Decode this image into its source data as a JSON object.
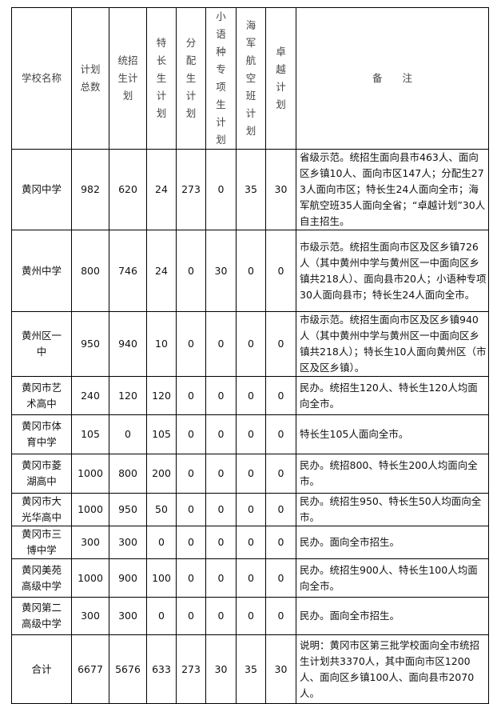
{
  "headers": {
    "school": "学校名称",
    "total": "计划总数",
    "unified": "统招生计划",
    "special": "特长生计划",
    "allocated": "分配生计划",
    "minor_lang": "小语种专项生计划",
    "navy": "海军航空班计划",
    "excellence": "卓越计划",
    "notes": "备　　注"
  },
  "rows": [
    {
      "school": "黄冈中学",
      "total": "982",
      "unified": "620",
      "special": "24",
      "allocated": "273",
      "minor_lang": "0",
      "navy": "35",
      "excellence": "30",
      "notes": "省级示范。统招生面向县市463人、面向区乡镇10人、面向市区147人；分配生273人面向市区；特长生24人面向全市；海军航空班35人面向全省；“卓越计划”30人自主招生。"
    },
    {
      "school": "黄州中学",
      "total": "800",
      "unified": "746",
      "special": "24",
      "allocated": "0",
      "minor_lang": "30",
      "navy": "0",
      "excellence": "0",
      "notes": "市级示范。统招生面向市区及区乡镇726人（其中黄州中学与黄州区一中面向区乡镇共218人）、面向县市20人；小语种专项30人面向县市；特长生24人面向全市。"
    },
    {
      "school": "黄州区一中",
      "total": "950",
      "unified": "940",
      "special": "10",
      "allocated": "0",
      "minor_lang": "0",
      "navy": "0",
      "excellence": "0",
      "notes": "市级示范。统招生面向市区及区乡镇940人（其中黄州中学与黄州区一中面向区乡镇共218人）；特长生10人面向黄州区（市区及区乡镇）。"
    },
    {
      "school": "黄冈市艺术高中",
      "total": "240",
      "unified": "120",
      "special": "120",
      "allocated": "0",
      "minor_lang": "0",
      "navy": "0",
      "excellence": "0",
      "notes": "民办。统招生120人、特长生120人均面向全市。"
    },
    {
      "school": "黄冈市体育中学",
      "total": "105",
      "unified": "0",
      "special": "105",
      "allocated": "0",
      "minor_lang": "0",
      "navy": "0",
      "excellence": "0",
      "notes": "特长生105人面向全市。"
    },
    {
      "school": "黄冈市菱湖高中",
      "total": "1000",
      "unified": "800",
      "special": "200",
      "allocated": "0",
      "minor_lang": "0",
      "navy": "0",
      "excellence": "0",
      "notes": "民办。统招800、特长生200人均面向全市。"
    },
    {
      "school": "黄冈市大光华高中",
      "total": "1000",
      "unified": "950",
      "special": "50",
      "allocated": "0",
      "minor_lang": "0",
      "navy": "0",
      "excellence": "0",
      "notes": "民办。统招生950、特长生50人均面向全市。"
    },
    {
      "school": "黄冈市三博中学",
      "total": "300",
      "unified": "300",
      "special": "0",
      "allocated": "0",
      "minor_lang": "0",
      "navy": "0",
      "excellence": "0",
      "notes": "民办。面向全市招生。"
    },
    {
      "school": "黄冈美苑高级中学",
      "total": "1000",
      "unified": "900",
      "special": "100",
      "allocated": "0",
      "minor_lang": "0",
      "navy": "0",
      "excellence": "0",
      "notes": "民办。统招生900人、特长生100人均面向全市。"
    },
    {
      "school": "黄冈第二高级中学",
      "total": "300",
      "unified": "300",
      "special": "0",
      "allocated": "0",
      "minor_lang": "0",
      "navy": "0",
      "excellence": "0",
      "notes": "民办。面向全市招生。"
    },
    {
      "school": "合计",
      "total": "6677",
      "unified": "5676",
      "special": "633",
      "allocated": "273",
      "minor_lang": "30",
      "navy": "35",
      "excellence": "30",
      "notes": "说明：黄冈市区第三批学校面向全市统招生计划共3370人，其中面向市区1200人、面向区乡镇100人、面向县市2070人。"
    }
  ]
}
